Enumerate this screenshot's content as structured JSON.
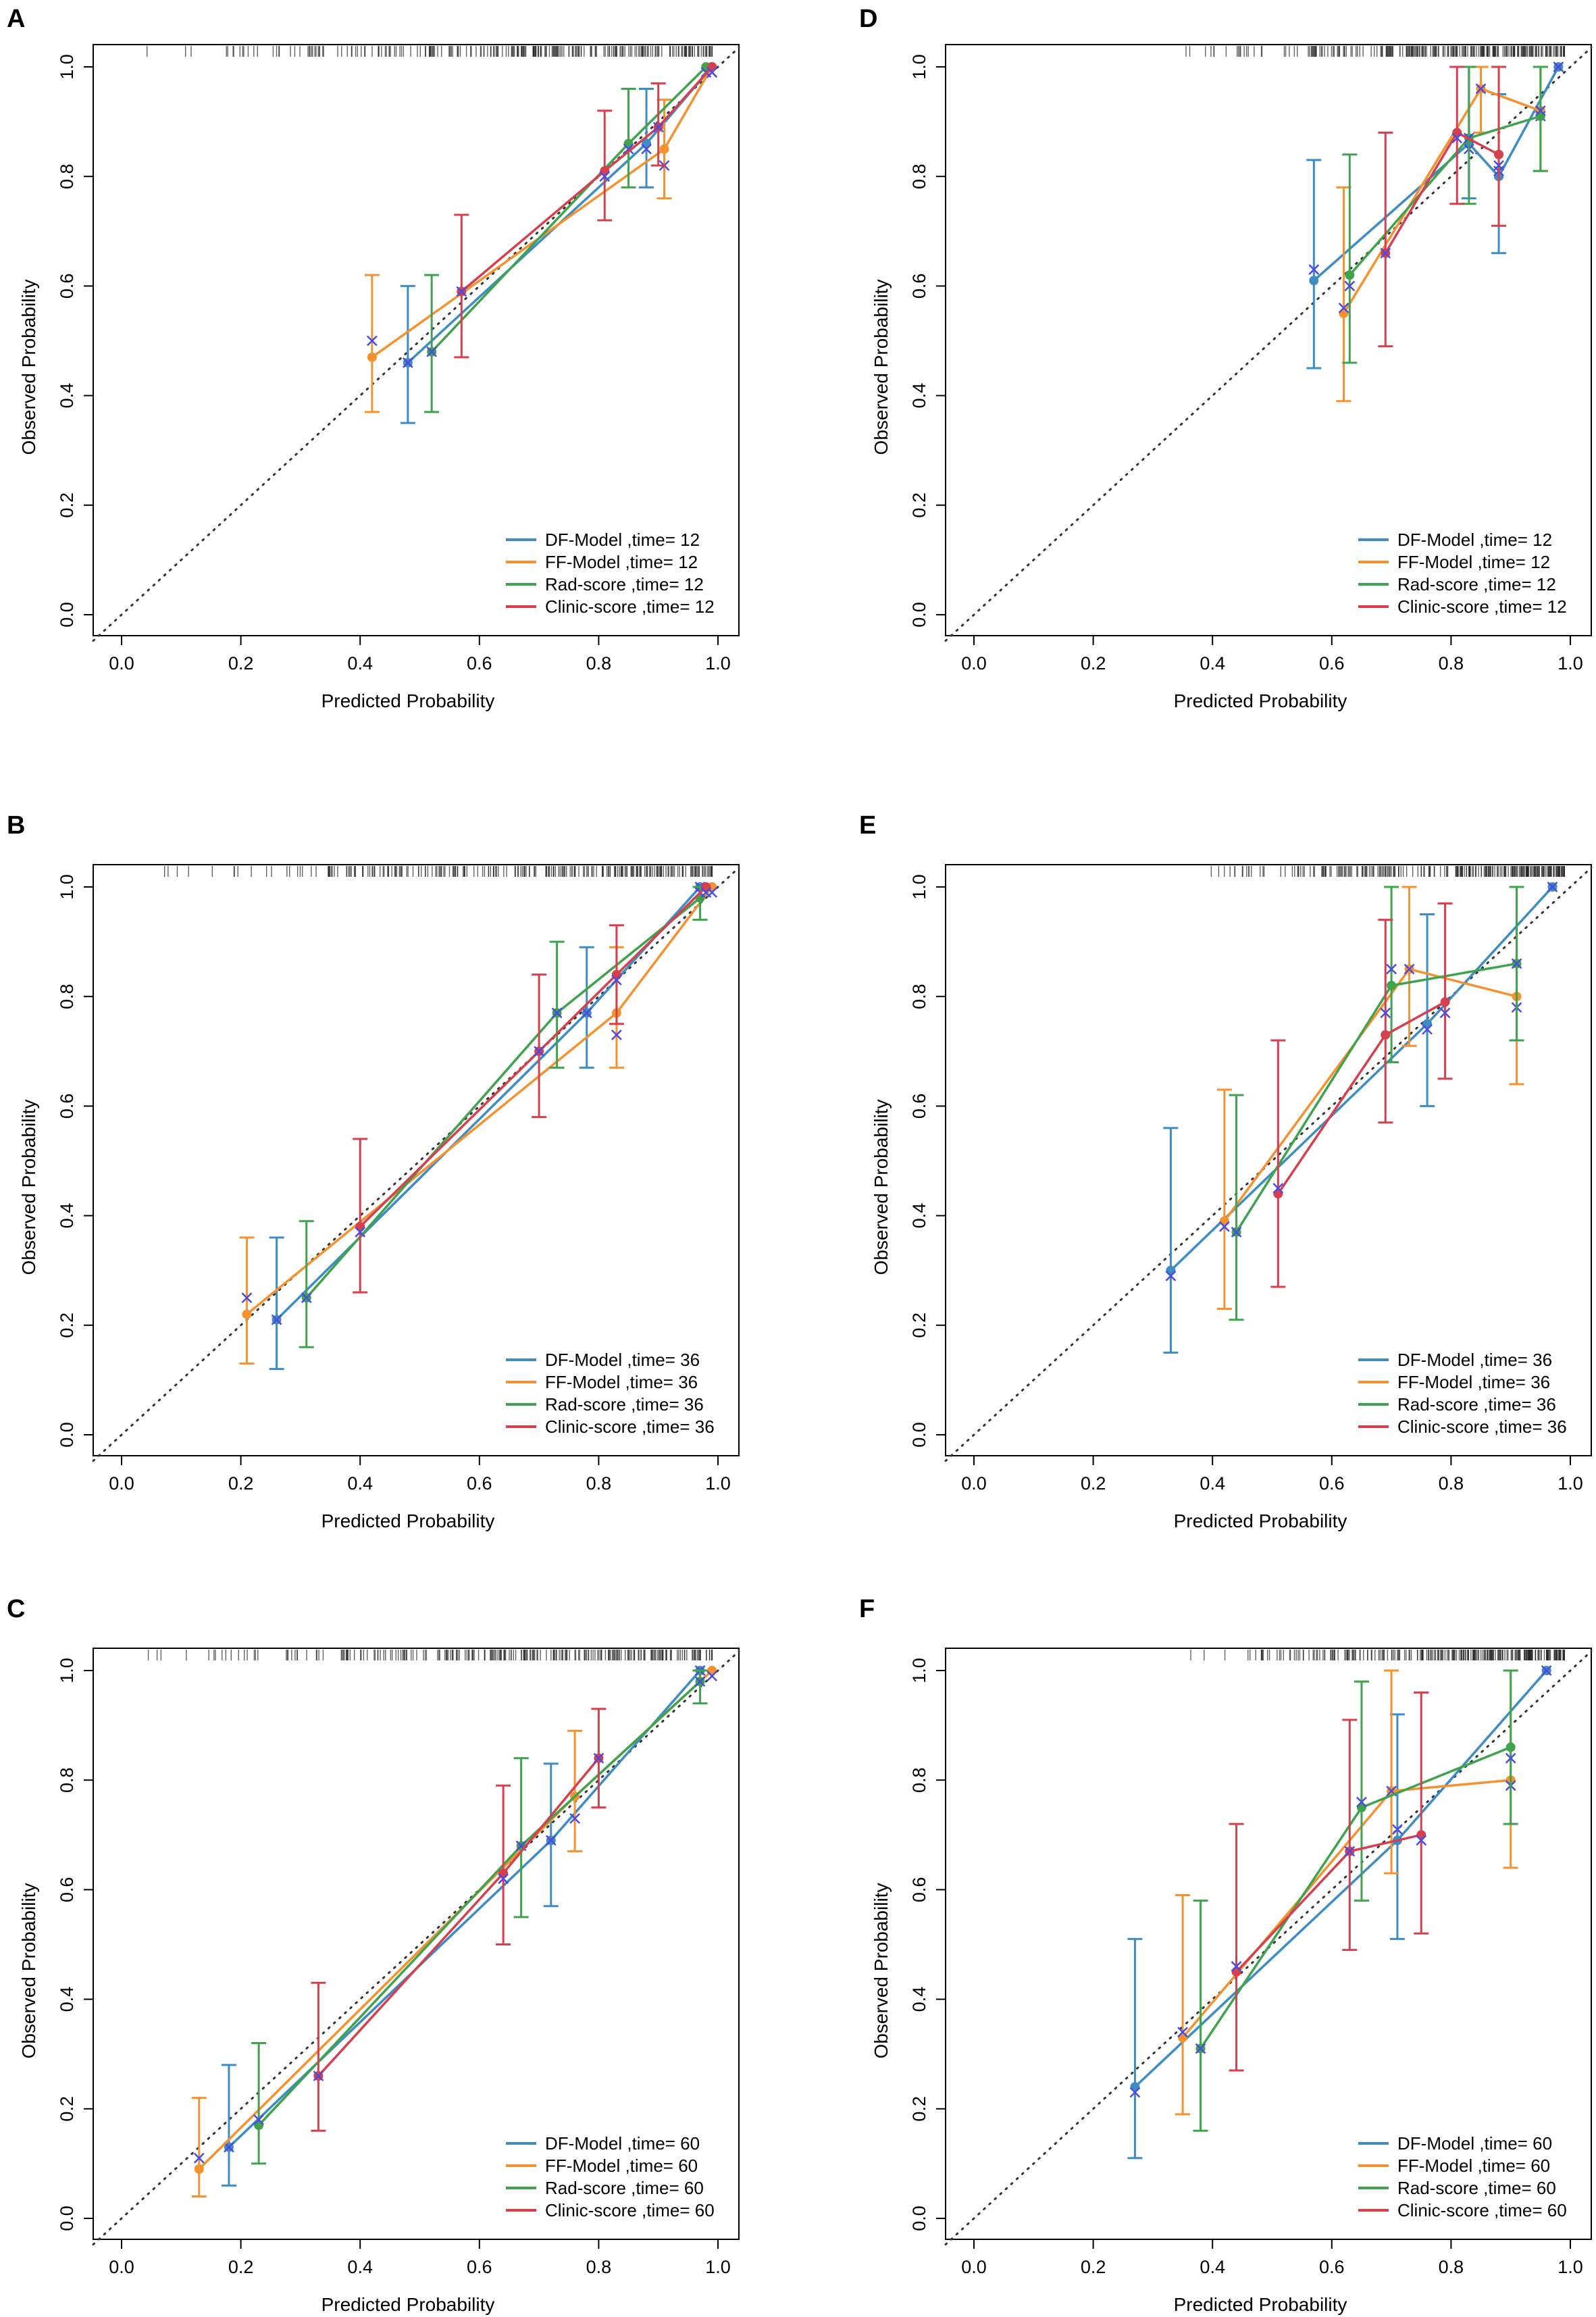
{
  "colors": {
    "DF": "#3d8cc4",
    "FF": "#f5922f",
    "Rad": "#3fa34d",
    "Clinic": "#d6404e",
    "corrected": "#4b4be0",
    "ideal": "#333333"
  },
  "chart_data": [
    {
      "panel": "A",
      "type": "line",
      "xlabel": "Predicted Probability",
      "ylabel": "Observed Probability",
      "xlim": [
        0,
        1
      ],
      "ylim": [
        0,
        1
      ],
      "xticks": [
        "0.0",
        "0.2",
        "0.4",
        "0.6",
        "0.8",
        "1.0"
      ],
      "yticks": [
        "0.0",
        "0.2",
        "0.4",
        "0.6",
        "0.8",
        "1.0"
      ],
      "legend_position": "bottom-right",
      "series": [
        {
          "key": "DF",
          "name": "DF-Model ,time= 12",
          "points": [
            [
              0.48,
              0.46,
              0.35,
              0.6,
              0.46
            ],
            [
              0.88,
              0.86,
              0.78,
              0.96,
              0.85
            ],
            [
              0.99,
              1.0,
              1.0,
              1.0,
              0.99
            ]
          ]
        },
        {
          "key": "FF",
          "name": "FF-Model ,time= 12",
          "points": [
            [
              0.42,
              0.47,
              0.37,
              0.62,
              0.5
            ],
            [
              0.91,
              0.85,
              0.76,
              0.94,
              0.82
            ],
            [
              0.99,
              1.0,
              1.0,
              1.0,
              0.99
            ]
          ]
        },
        {
          "key": "Rad",
          "name": "Rad-score ,time= 12",
          "points": [
            [
              0.52,
              0.48,
              0.37,
              0.62,
              0.48
            ],
            [
              0.85,
              0.86,
              0.78,
              0.96,
              0.85
            ],
            [
              0.98,
              1.0,
              1.0,
              1.0,
              0.99
            ]
          ]
        },
        {
          "key": "Clinic",
          "name": "Clinic-score ,time= 12",
          "points": [
            [
              0.57,
              0.59,
              0.47,
              0.73,
              0.59
            ],
            [
              0.81,
              0.81,
              0.72,
              0.92,
              0.8
            ],
            [
              0.9,
              0.89,
              0.82,
              0.97,
              0.89
            ],
            [
              0.99,
              1.0,
              1.0,
              1.0,
              0.99
            ]
          ]
        }
      ]
    },
    {
      "panel": "D",
      "type": "line",
      "xlabel": "Predicted Probability",
      "ylabel": "Observed Probability",
      "xlim": [
        0,
        1
      ],
      "ylim": [
        0,
        1
      ],
      "xticks": [
        "0.0",
        "0.2",
        "0.4",
        "0.6",
        "0.8",
        "1.0"
      ],
      "yticks": [
        "0.0",
        "0.2",
        "0.4",
        "0.6",
        "0.8",
        "1.0"
      ],
      "legend_position": "bottom-right",
      "series": [
        {
          "key": "DF",
          "name": "DF-Model ,time= 12",
          "points": [
            [
              0.57,
              0.61,
              0.45,
              0.83,
              0.63
            ],
            [
              0.83,
              0.86,
              0.76,
              1.0,
              0.85
            ],
            [
              0.88,
              0.8,
              0.66,
              0.95,
              0.81
            ],
            [
              0.98,
              1.0,
              1.0,
              1.0,
              1.0
            ]
          ]
        },
        {
          "key": "FF",
          "name": "FF-Model ,time= 12",
          "points": [
            [
              0.62,
              0.55,
              0.39,
              0.78,
              0.56
            ],
            [
              0.85,
              0.96,
              0.88,
              1.0,
              0.96
            ],
            [
              0.95,
              0.92,
              0.81,
              1.0,
              0.91
            ]
          ]
        },
        {
          "key": "Rad",
          "name": "Rad-score ,time= 12",
          "points": [
            [
              0.63,
              0.62,
              0.46,
              0.84,
              0.6
            ],
            [
              0.83,
              0.87,
              0.75,
              1.0,
              0.87
            ],
            [
              0.95,
              0.91,
              0.81,
              1.0,
              0.92
            ]
          ]
        },
        {
          "key": "Clinic",
          "name": "Clinic-score ,time= 12",
          "points": [
            [
              0.69,
              0.66,
              0.49,
              0.88,
              0.66
            ],
            [
              0.81,
              0.88,
              0.75,
              1.0,
              0.87
            ],
            [
              0.88,
              0.84,
              0.71,
              1.0,
              0.82
            ]
          ]
        }
      ]
    },
    {
      "panel": "B",
      "type": "line",
      "xlabel": "Predicted Probability",
      "ylabel": "Observed Probability",
      "xlim": [
        0,
        1
      ],
      "ylim": [
        0,
        1
      ],
      "xticks": [
        "0.0",
        "0.2",
        "0.4",
        "0.6",
        "0.8",
        "1.0"
      ],
      "yticks": [
        "0.0",
        "0.2",
        "0.4",
        "0.6",
        "0.8",
        "1.0"
      ],
      "legend_position": "bottom-right",
      "series": [
        {
          "key": "DF",
          "name": "DF-Model ,time= 36",
          "points": [
            [
              0.26,
              0.21,
              0.12,
              0.36,
              0.21
            ],
            [
              0.78,
              0.77,
              0.67,
              0.89,
              0.77
            ],
            [
              0.97,
              1.0,
              1.0,
              1.0,
              1.0
            ]
          ]
        },
        {
          "key": "FF",
          "name": "FF-Model ,time= 36",
          "points": [
            [
              0.21,
              0.22,
              0.13,
              0.36,
              0.25
            ],
            [
              0.83,
              0.77,
              0.67,
              0.89,
              0.73
            ],
            [
              0.99,
              1.0,
              1.0,
              1.0,
              0.99
            ]
          ]
        },
        {
          "key": "Rad",
          "name": "Rad-score ,time= 36",
          "points": [
            [
              0.31,
              0.25,
              0.16,
              0.39,
              0.25
            ],
            [
              0.73,
              0.77,
              0.67,
              0.9,
              0.77
            ],
            [
              0.97,
              0.98,
              0.94,
              1.0,
              0.99
            ]
          ]
        },
        {
          "key": "Clinic",
          "name": "Clinic-score ,time= 36",
          "points": [
            [
              0.4,
              0.38,
              0.26,
              0.54,
              0.37
            ],
            [
              0.7,
              0.7,
              0.58,
              0.84,
              0.7
            ],
            [
              0.83,
              0.84,
              0.75,
              0.93,
              0.83
            ],
            [
              0.98,
              1.0,
              1.0,
              1.0,
              0.99
            ]
          ]
        }
      ]
    },
    {
      "panel": "E",
      "type": "line",
      "xlabel": "Predicted Probability",
      "ylabel": "Observed Probability",
      "xlim": [
        0,
        1
      ],
      "ylim": [
        0,
        1
      ],
      "xticks": [
        "0.0",
        "0.2",
        "0.4",
        "0.6",
        "0.8",
        "1.0"
      ],
      "yticks": [
        "0.0",
        "0.2",
        "0.4",
        "0.6",
        "0.8",
        "1.0"
      ],
      "legend_position": "bottom-right",
      "series": [
        {
          "key": "DF",
          "name": "DF-Model ,time= 36",
          "points": [
            [
              0.33,
              0.3,
              0.15,
              0.56,
              0.29
            ],
            [
              0.76,
              0.75,
              0.6,
              0.95,
              0.74
            ],
            [
              0.97,
              1.0,
              1.0,
              1.0,
              1.0
            ]
          ]
        },
        {
          "key": "FF",
          "name": "FF-Model ,time= 36",
          "points": [
            [
              0.42,
              0.39,
              0.23,
              0.63,
              0.38
            ],
            [
              0.73,
              0.85,
              0.71,
              1.0,
              0.85
            ],
            [
              0.91,
              0.8,
              0.64,
              1.0,
              0.78
            ]
          ]
        },
        {
          "key": "Rad",
          "name": "Rad-score ,time= 36",
          "points": [
            [
              0.44,
              0.37,
              0.21,
              0.62,
              0.37
            ],
            [
              0.7,
              0.82,
              0.68,
              1.0,
              0.85
            ],
            [
              0.91,
              0.86,
              0.72,
              1.0,
              0.86
            ]
          ]
        },
        {
          "key": "Clinic",
          "name": "Clinic-score ,time= 36",
          "points": [
            [
              0.51,
              0.44,
              0.27,
              0.72,
              0.45
            ],
            [
              0.69,
              0.73,
              0.57,
              0.94,
              0.77
            ],
            [
              0.79,
              0.79,
              0.65,
              0.97,
              0.77
            ]
          ]
        }
      ]
    },
    {
      "panel": "C",
      "type": "line",
      "xlabel": "Predicted Probability",
      "ylabel": "Observed Probability",
      "xlim": [
        0,
        1
      ],
      "ylim": [
        0,
        1
      ],
      "xticks": [
        "0.0",
        "0.2",
        "0.4",
        "0.6",
        "0.8",
        "1.0"
      ],
      "yticks": [
        "0.0",
        "0.2",
        "0.4",
        "0.6",
        "0.8",
        "1.0"
      ],
      "legend_position": "bottom-right",
      "series": [
        {
          "key": "DF",
          "name": "DF-Model ,time= 60",
          "points": [
            [
              0.18,
              0.13,
              0.06,
              0.28,
              0.13
            ],
            [
              0.72,
              0.69,
              0.57,
              0.83,
              0.69
            ],
            [
              0.97,
              1.0,
              1.0,
              1.0,
              1.0
            ]
          ]
        },
        {
          "key": "FF",
          "name": "FF-Model ,time= 60",
          "points": [
            [
              0.13,
              0.09,
              0.04,
              0.22,
              0.11
            ],
            [
              0.76,
              0.77,
              0.67,
              0.89,
              0.73
            ],
            [
              0.99,
              1.0,
              1.0,
              1.0,
              0.99
            ]
          ]
        },
        {
          "key": "Rad",
          "name": "Rad-score ,time= 60",
          "points": [
            [
              0.23,
              0.17,
              0.1,
              0.32,
              0.18
            ],
            [
              0.67,
              0.68,
              0.55,
              0.84,
              0.68
            ],
            [
              0.97,
              0.98,
              0.94,
              1.0,
              0.98
            ]
          ]
        },
        {
          "key": "Clinic",
          "name": "Clinic-score ,time= 60",
          "points": [
            [
              0.33,
              0.26,
              0.16,
              0.43,
              0.26
            ],
            [
              0.64,
              0.63,
              0.5,
              0.79,
              0.62
            ],
            [
              0.8,
              0.84,
              0.75,
              0.93,
              0.84
            ]
          ]
        }
      ]
    },
    {
      "panel": "F",
      "type": "line",
      "xlabel": "Predicted Probability",
      "ylabel": "Observed Probability",
      "xlim": [
        0,
        1
      ],
      "ylim": [
        0,
        1
      ],
      "xticks": [
        "0.0",
        "0.2",
        "0.4",
        "0.6",
        "0.8",
        "1.0"
      ],
      "yticks": [
        "0.0",
        "0.2",
        "0.4",
        "0.6",
        "0.8",
        "1.0"
      ],
      "legend_position": "bottom-right",
      "series": [
        {
          "key": "DF",
          "name": "DF-Model ,time= 60",
          "points": [
            [
              0.27,
              0.24,
              0.11,
              0.51,
              0.23
            ],
            [
              0.71,
              0.69,
              0.51,
              0.92,
              0.71
            ],
            [
              0.96,
              1.0,
              1.0,
              1.0,
              1.0
            ]
          ]
        },
        {
          "key": "FF",
          "name": "FF-Model ,time= 60",
          "points": [
            [
              0.35,
              0.33,
              0.19,
              0.59,
              0.34
            ],
            [
              0.7,
              0.78,
              0.63,
              1.0,
              0.78
            ],
            [
              0.9,
              0.8,
              0.64,
              1.0,
              0.79
            ]
          ]
        },
        {
          "key": "Rad",
          "name": "Rad-score ,time= 60",
          "points": [
            [
              0.38,
              0.31,
              0.16,
              0.58,
              0.31
            ],
            [
              0.65,
              0.75,
              0.58,
              0.98,
              0.76
            ],
            [
              0.9,
              0.86,
              0.72,
              1.0,
              0.84
            ]
          ]
        },
        {
          "key": "Clinic",
          "name": "Clinic-score ,time= 60",
          "points": [
            [
              0.44,
              0.45,
              0.27,
              0.72,
              0.46
            ],
            [
              0.63,
              0.67,
              0.49,
              0.91,
              0.67
            ],
            [
              0.75,
              0.7,
              0.52,
              0.96,
              0.69
            ]
          ]
        }
      ]
    }
  ]
}
